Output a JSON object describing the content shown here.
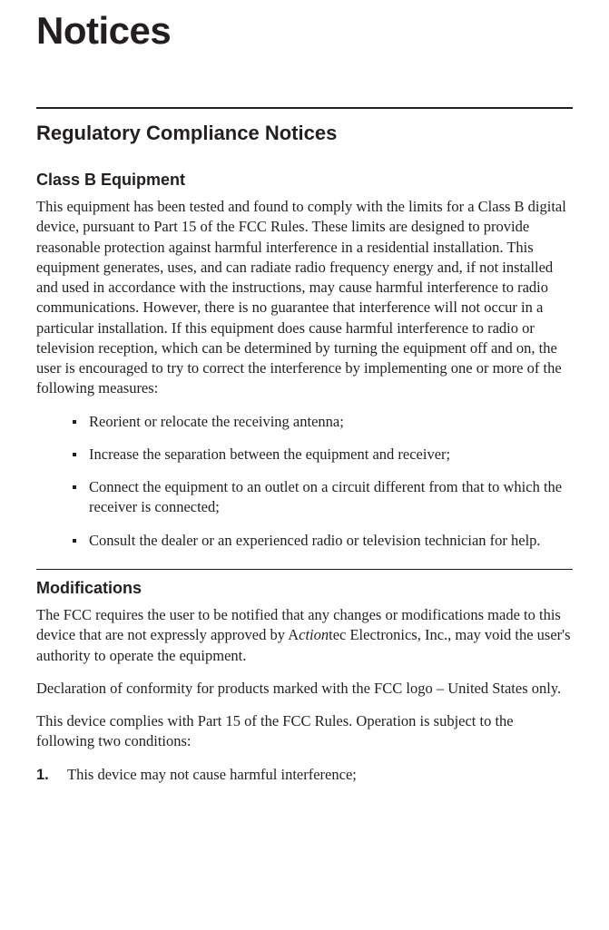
{
  "page_title": "Notices",
  "section1": {
    "heading": "Regulatory Compliance Notices",
    "sub_heading": "Class B Equipment",
    "body": "This equipment has been tested and found to comply with the limits for a Class B digital device, pursuant to Part 15 of the FCC Rules. These limits are designed to provide reasonable protection against harmful interference in a residential installation. This equipment generates, uses, and can radiate radio frequency energy and, if not installed and used in accordance with the instructions, may cause harmful interference to radio communications. However, there is no guarantee that interference will not occur in a particular installation. If this equipment does cause harmful interference to radio or television reception, which can be determined by turning the equipment off and on, the user is encouraged to try to correct the interference by implementing one or more of the following measures:",
    "bullets": [
      "Reorient or relocate the receiving antenna;",
      "Increase the separation between the equipment and receiver;",
      "Connect the equipment to an outlet on a circuit different from that to which the receiver is connected;",
      "Consult the dealer or an experienced radio or television technician for help."
    ]
  },
  "section2": {
    "heading": "Modifications",
    "body1_pre": "The FCC requires the user to be notified that any changes or modifications made to this device that are not expressly approved by A",
    "body1_italic": "ction",
    "body1_post": "tec Electronics, Inc., may void the user's authority to operate the equipment.",
    "body2": "Declaration of conformity for products marked with the FCC logo – United States only.",
    "body3": "This device complies with Part 15 of the FCC Rules. Operation is subject to the following two conditions:",
    "numbered": [
      {
        "num": "1.",
        "text": "This device may not cause harmful interference;"
      }
    ]
  }
}
